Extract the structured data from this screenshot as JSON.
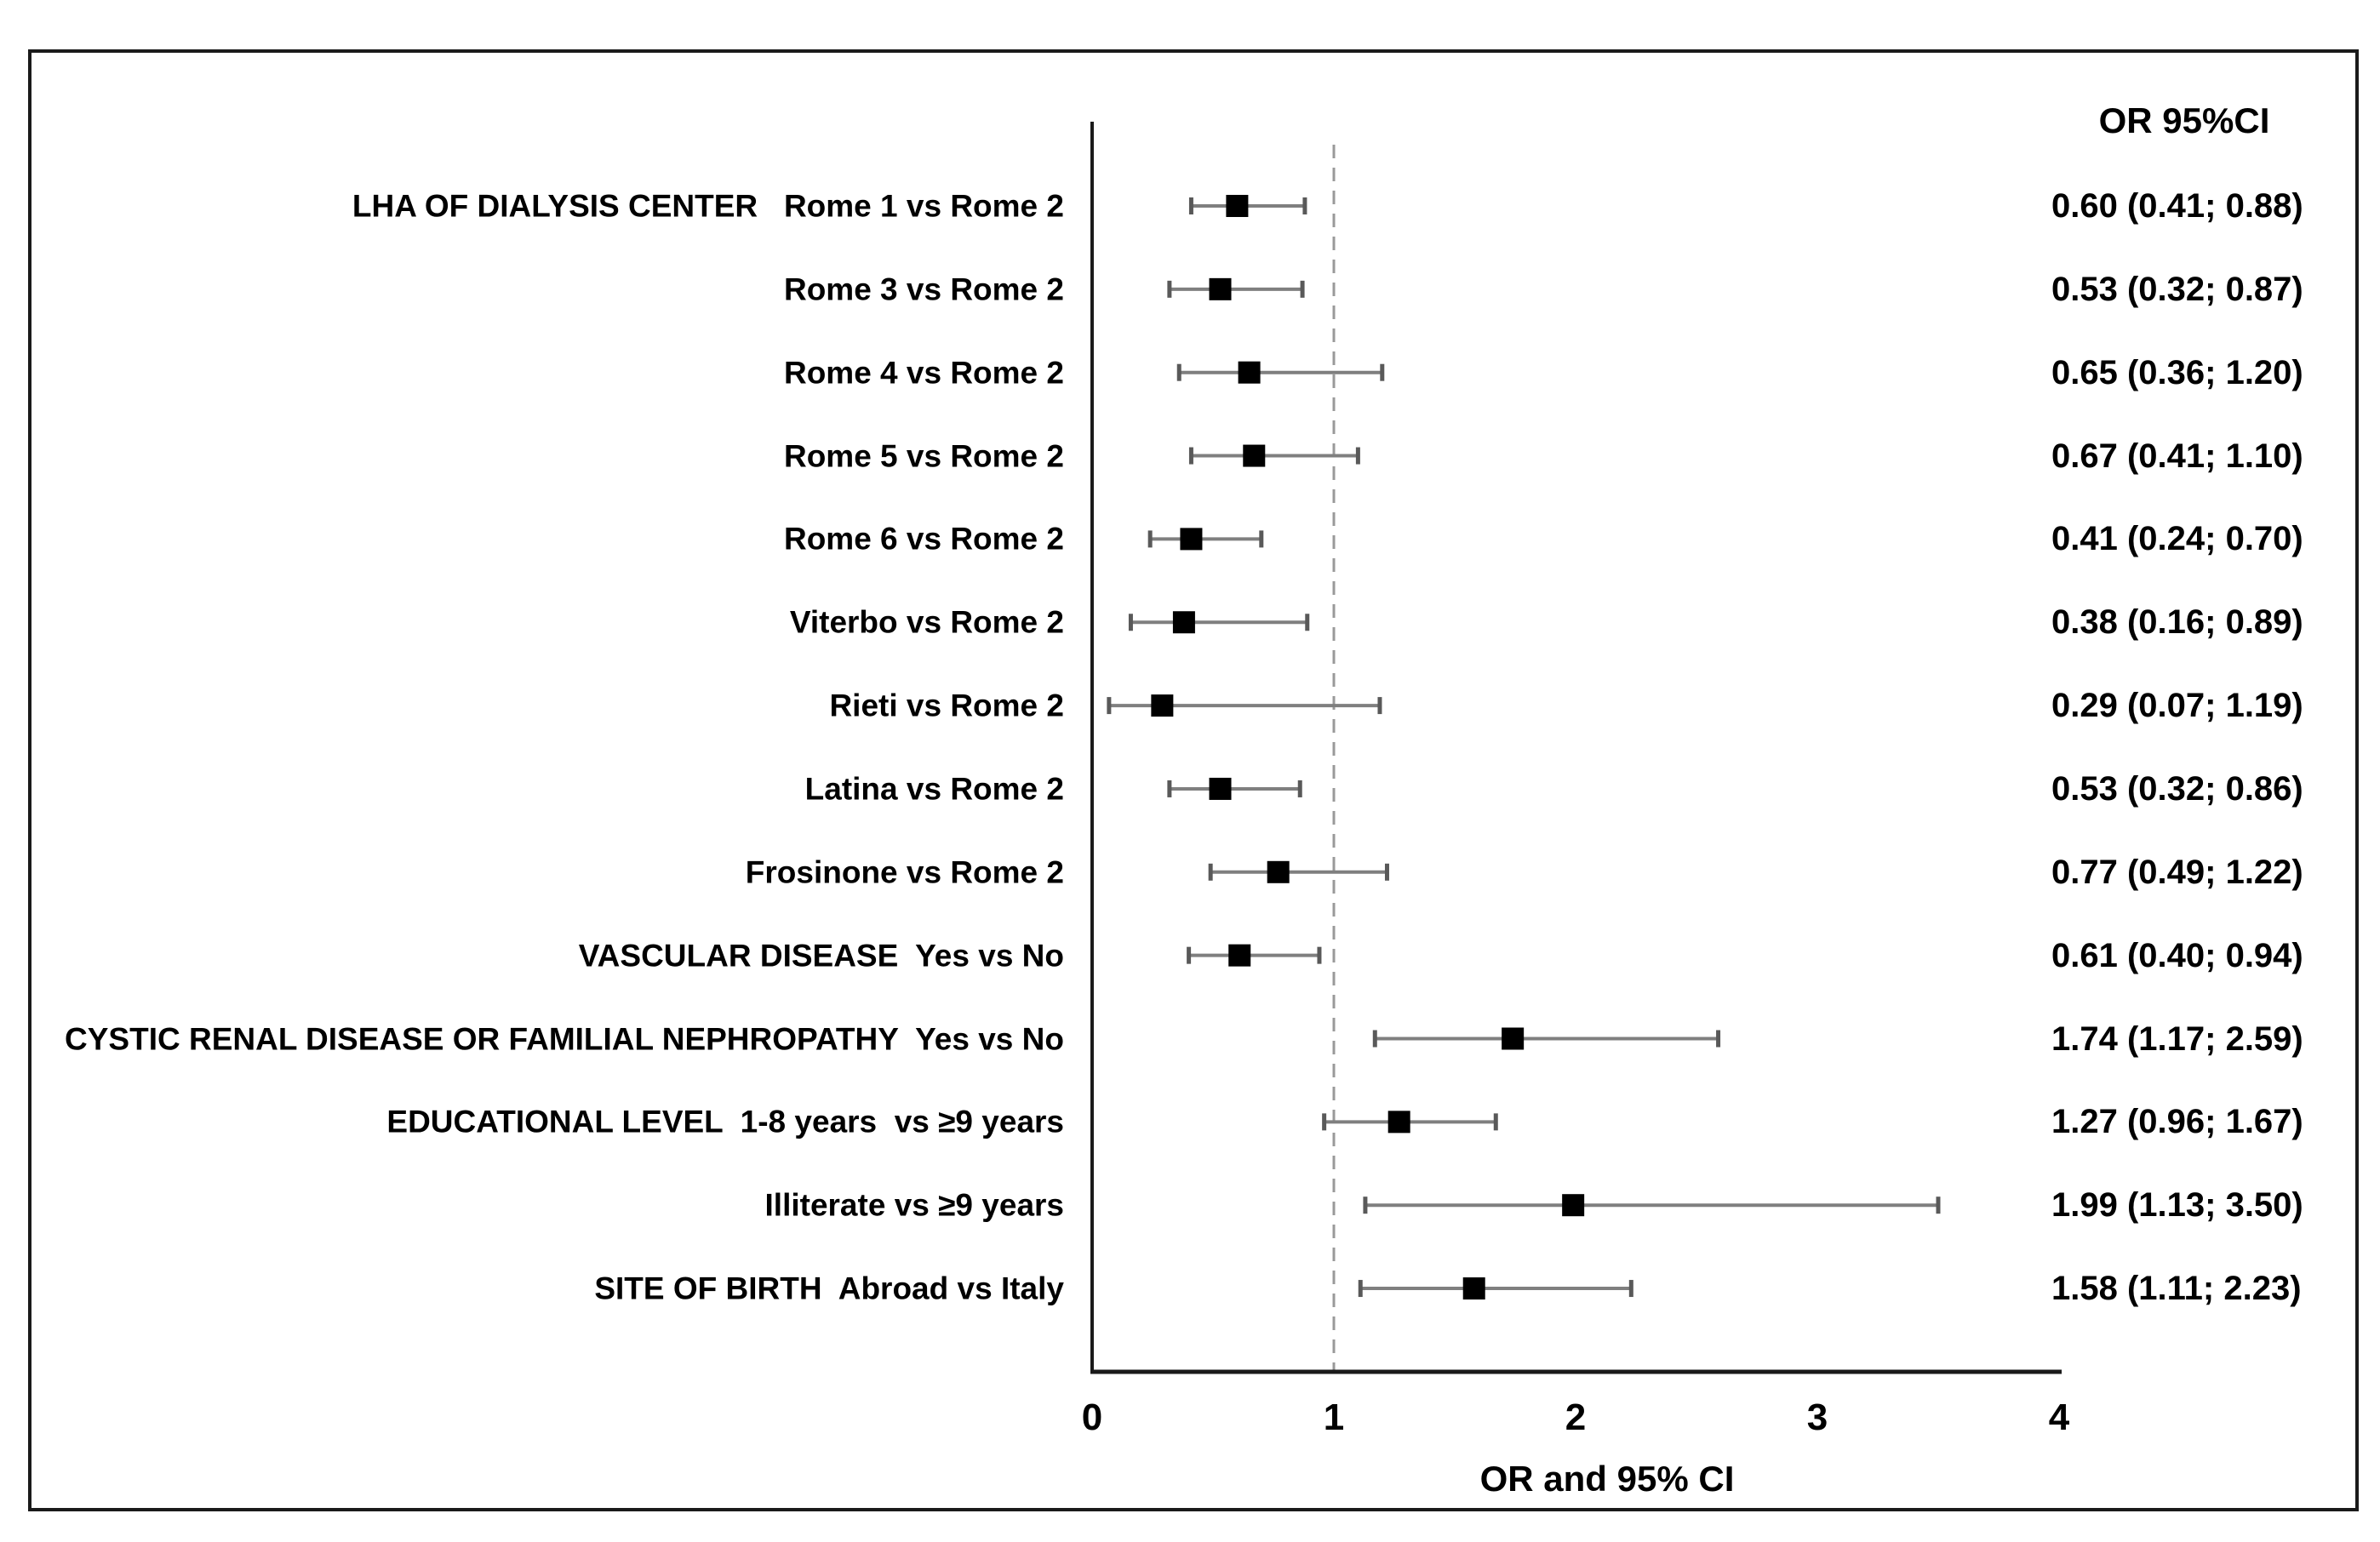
{
  "chart_data": {
    "type": "forest",
    "title": "",
    "xlabel": "OR and 95% CI",
    "value_column_header": "OR 95%CI",
    "xlim": [
      0,
      4
    ],
    "x_ticks": [
      0,
      1,
      2,
      3,
      4
    ],
    "reference_line": 1,
    "grid": "off",
    "legend": "none",
    "colors": {
      "marker": "#000000",
      "ci_line": "#7f7f7f",
      "ci_cap": "#595959",
      "reference_line": "#999999",
      "axis": "#1a1a1a",
      "text": "#000000",
      "background": "#ffffff"
    },
    "rows": [
      {
        "label": "LHA OF DIALYSIS CENTER   Rome 1 vs Rome 2",
        "group": "LHA OF DIALYSIS CENTER",
        "comparison": "Rome 1 vs Rome 2",
        "or": 0.6,
        "ci_low": 0.41,
        "ci_high": 0.88,
        "value_text": "0.60 (0.41; 0.88)"
      },
      {
        "label": "Rome 3 vs Rome 2",
        "group": "",
        "comparison": "Rome 3 vs Rome 2",
        "or": 0.53,
        "ci_low": 0.32,
        "ci_high": 0.87,
        "value_text": "0.53 (0.32; 0.87)"
      },
      {
        "label": "Rome 4 vs Rome 2",
        "group": "",
        "comparison": "Rome 4 vs Rome 2",
        "or": 0.65,
        "ci_low": 0.36,
        "ci_high": 1.2,
        "value_text": "0.65 (0.36; 1.20)"
      },
      {
        "label": "Rome 5 vs Rome 2",
        "group": "",
        "comparison": "Rome 5 vs Rome 2",
        "or": 0.67,
        "ci_low": 0.41,
        "ci_high": 1.1,
        "value_text": "0.67 (0.41; 1.10)"
      },
      {
        "label": "Rome 6 vs Rome 2",
        "group": "",
        "comparison": "Rome 6 vs Rome 2",
        "or": 0.41,
        "ci_low": 0.24,
        "ci_high": 0.7,
        "value_text": "0.41 (0.24; 0.70)"
      },
      {
        "label": "Viterbo vs Rome 2",
        "group": "",
        "comparison": "Viterbo vs Rome 2",
        "or": 0.38,
        "ci_low": 0.16,
        "ci_high": 0.89,
        "value_text": "0.38 (0.16; 0.89)"
      },
      {
        "label": "Rieti vs Rome 2",
        "group": "",
        "comparison": "Rieti vs Rome 2",
        "or": 0.29,
        "ci_low": 0.07,
        "ci_high": 1.19,
        "value_text": "0.29 (0.07; 1.19)"
      },
      {
        "label": "Latina vs Rome 2",
        "group": "",
        "comparison": "Latina vs Rome 2",
        "or": 0.53,
        "ci_low": 0.32,
        "ci_high": 0.86,
        "value_text": "0.53 (0.32; 0.86)"
      },
      {
        "label": "Frosinone vs Rome 2",
        "group": "",
        "comparison": "Frosinone vs Rome 2",
        "or": 0.77,
        "ci_low": 0.49,
        "ci_high": 1.22,
        "value_text": "0.77 (0.49; 1.22)"
      },
      {
        "label": "VASCULAR DISEASE  Yes vs No",
        "group": "VASCULAR DISEASE",
        "comparison": "Yes vs No",
        "or": 0.61,
        "ci_low": 0.4,
        "ci_high": 0.94,
        "value_text": "0.61 (0.40; 0.94)"
      },
      {
        "label": "CYSTIC RENAL DISEASE OR FAMILIAL NEPHROPATHY  Yes vs No",
        "group": "CYSTIC RENAL DISEASE OR FAMILIAL NEPHROPATHY",
        "comparison": "Yes vs No",
        "or": 1.74,
        "ci_low": 1.17,
        "ci_high": 2.59,
        "value_text": "1.74 (1.17; 2.59)"
      },
      {
        "label": "EDUCATIONAL LEVEL  1-8 years  vs ≥9 years",
        "group": "EDUCATIONAL LEVEL",
        "comparison": "1-8 years  vs ≥9 years",
        "or": 1.27,
        "ci_low": 0.96,
        "ci_high": 1.67,
        "value_text": "1.27 (0.96; 1.67)"
      },
      {
        "label": "Illiterate vs ≥9 years",
        "group": "",
        "comparison": "Illiterate vs ≥9 years",
        "or": 1.99,
        "ci_low": 1.13,
        "ci_high": 3.5,
        "value_text": "1.99 (1.13; 3.50)"
      },
      {
        "label": "SITE OF BIRTH  Abroad vs Italy",
        "group": "SITE OF BIRTH",
        "comparison": "Abroad vs Italy",
        "or": 1.58,
        "ci_low": 1.11,
        "ci_high": 2.23,
        "value_text": "1.58 (1.11; 2.23)"
      }
    ]
  }
}
